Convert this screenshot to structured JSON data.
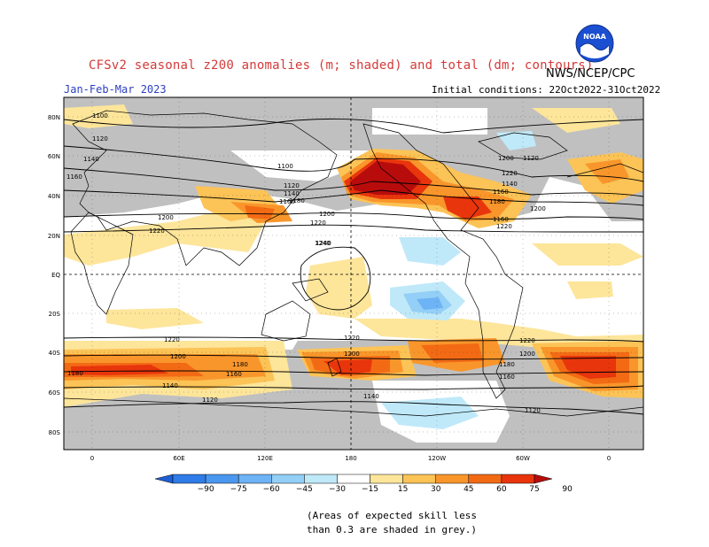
{
  "header": {
    "title": "CFSv2 seasonal z200 anomalies (m; shaded) and total (dm; contours)",
    "period": "Jan-Feb-Mar 2023",
    "agency": "NWS/NCEP/CPC",
    "initial_conditions": "Initial conditions: 22Oct2022-31Oct2022",
    "logo_text": "NOAA"
  },
  "map": {
    "lat_labels": [
      "80N",
      "60N",
      "40N",
      "20N",
      "EQ",
      "20S",
      "40S",
      "60S",
      "80S"
    ],
    "lon_labels": [
      "0",
      "60E",
      "120E",
      "180",
      "120W",
      "60W",
      "0"
    ],
    "contour_labels": [
      "1100",
      "1120",
      "1140",
      "1160",
      "1120",
      "1140",
      "1160",
      "1180",
      "1200",
      "1220",
      "1240",
      "1200",
      "1220",
      "1100",
      "1140",
      "1160",
      "1180",
      "1200",
      "1220",
      "1200",
      "1220",
      "1240",
      "1220",
      "1200",
      "1180",
      "1160",
      "1140",
      "1120",
      "1220",
      "1200",
      "1180",
      "1160",
      "1140",
      "1120",
      "1220",
      "1200",
      "1180",
      "1160",
      "1120"
    ]
  },
  "colorbar": {
    "ticks": [
      "−90",
      "−75",
      "−60",
      "−45",
      "−30",
      "−15",
      "15",
      "30",
      "45",
      "60",
      "75",
      "90"
    ],
    "colors": [
      "#1f5fd6",
      "#2f7be8",
      "#4a97ef",
      "#6db3f5",
      "#93cff7",
      "#bfe9f9",
      "#ffffff",
      "#fde59a",
      "#fcc356",
      "#f9962b",
      "#f36a15",
      "#e8350c",
      "#b80c0c"
    ]
  },
  "note": {
    "line1": "(Areas of expected skill less",
    "line2": "than 0.3 are shaded in grey.)"
  }
}
